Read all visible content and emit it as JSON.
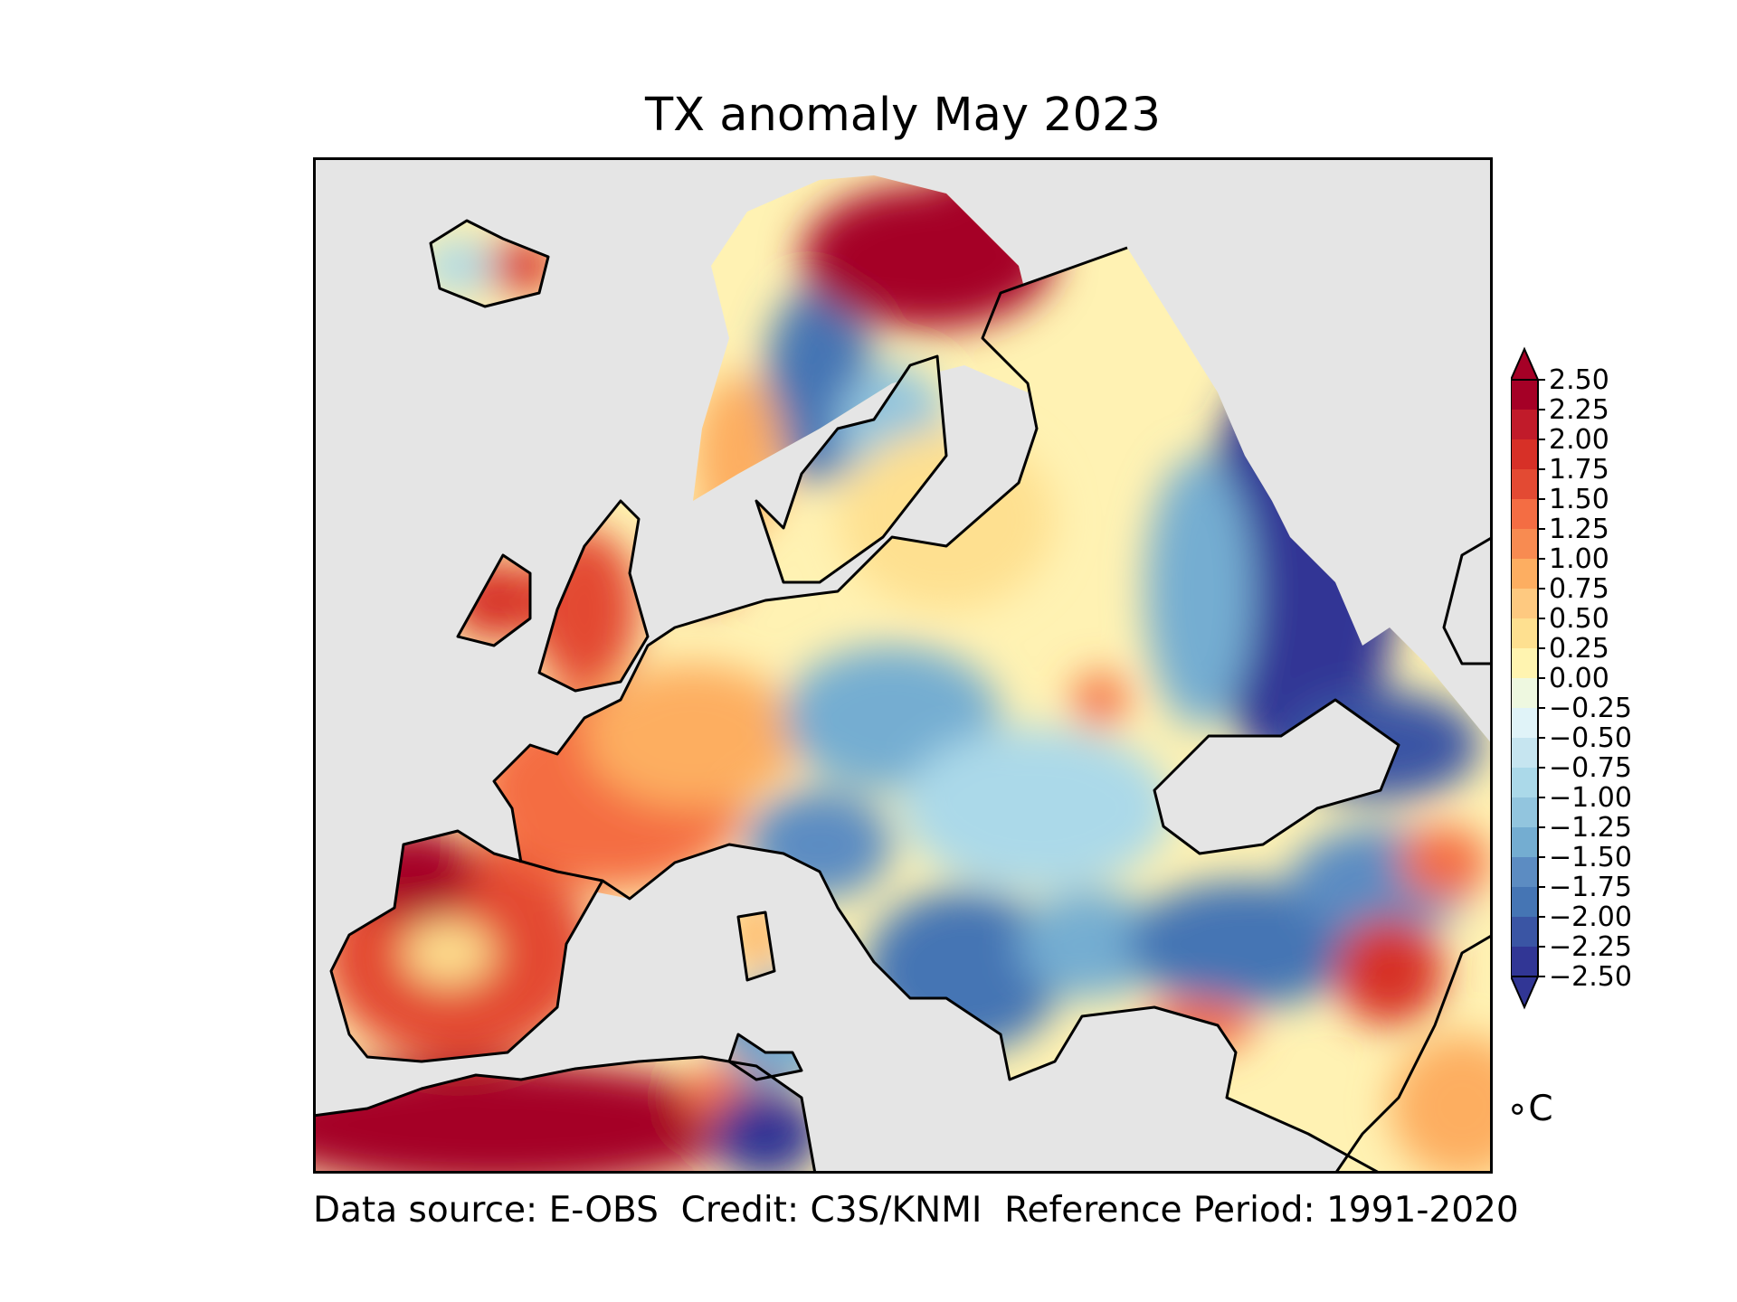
{
  "title": "TX anomaly May 2023",
  "footer": "Data source: E-OBS  Credit: C3S/KNMI  Reference Period: 1991-2020",
  "unit": "∘C",
  "colors": {
    "ocean": "#e5e5e5",
    "coastline": "#000000",
    "warm_extreme": "#a50026",
    "cold_extreme": "#313695"
  },
  "colorbar": {
    "ticks": [
      "2.50",
      "2.25",
      "2.00",
      "1.75",
      "1.50",
      "1.25",
      "1.00",
      "0.75",
      "0.50",
      "0.25",
      "0.00",
      "−0.25",
      "−0.50",
      "−0.75",
      "−1.00",
      "−1.25",
      "−1.50",
      "−1.75",
      "−2.00",
      "−2.25",
      "−2.50"
    ],
    "colors": [
      "#a50026",
      "#c11b2a",
      "#d73027",
      "#e34a33",
      "#f46d43",
      "#f88b51",
      "#fdae61",
      "#fec980",
      "#fee090",
      "#fff4b0",
      "#ffffbf",
      "#eef8e0",
      "#e0f3f8",
      "#c6e5f0",
      "#abd9e9",
      "#92c5de",
      "#74add1",
      "#5c8cc2",
      "#4575b4",
      "#3a55a4",
      "#313695"
    ],
    "extend": "both"
  },
  "map": {
    "variable": "TX anomaly",
    "projection": "lat-lon",
    "anomaly_regions": [
      {
        "name": "Iberian Peninsula",
        "anomaly": 1.5
      },
      {
        "name": "France",
        "anomaly": 1.0
      },
      {
        "name": "British Isles",
        "anomaly": 1.5
      },
      {
        "name": "Northwest Africa",
        "anomaly": 2.5
      },
      {
        "name": "Tunisia",
        "anomaly": -2.5
      },
      {
        "name": "Scandinavian Mountains",
        "anomaly": -1.5
      },
      {
        "name": "Kola Peninsula and Northern Finland",
        "anomaly": 2.5
      },
      {
        "name": "Poland",
        "anomaly": -1.0
      },
      {
        "name": "Balkans",
        "anomaly": -1.5
      },
      {
        "name": "Western Russia",
        "anomaly": -2.5
      },
      {
        "name": "Turkey",
        "anomaly": -1.75
      },
      {
        "name": "Levant",
        "anomaly": 1.5
      },
      {
        "name": "Italy",
        "anomaly": -1.0
      },
      {
        "name": "Baltic region",
        "anomaly": 0.5
      }
    ]
  }
}
